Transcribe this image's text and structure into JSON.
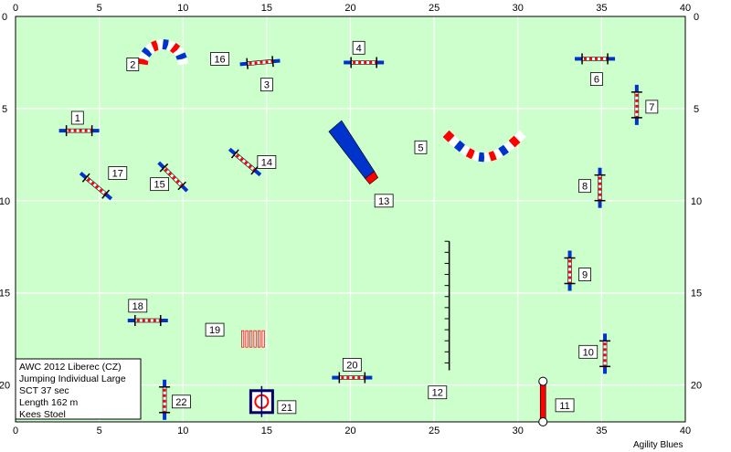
{
  "axis": {
    "x_min": 0,
    "x_max": 40,
    "y_min": 0,
    "y_max": 22,
    "x_ticks": [
      "0",
      "5",
      "10",
      "15",
      "20",
      "25",
      "30",
      "35",
      "40"
    ],
    "y_ticks": [
      "0",
      "5",
      "10",
      "15",
      "20"
    ],
    "x_tick_values": [
      0,
      5,
      10,
      15,
      20,
      25,
      30,
      35,
      40
    ],
    "y_tick_values": [
      0,
      5,
      10,
      15,
      20
    ],
    "grid": true,
    "field_color": "#ccffcc",
    "grid_color": "#ffffff"
  },
  "info": {
    "event": "AWC 2012 Liberec (CZ)",
    "class": "Jumping Individual Large",
    "sct": "SCT 37 sec",
    "length": "Length 162 m",
    "judge": "Kees Stoel"
  },
  "credit": "Agility Blues",
  "colors": {
    "blue": "#0033cc",
    "red": "#ff0000",
    "white": "#ffffff",
    "navy": "#000066"
  },
  "obstacles": [
    {
      "num": "1",
      "type": "jump",
      "x": 3.8,
      "y": 6.2,
      "angle": 0,
      "label_x": 3.7,
      "label_y": 5.5
    },
    {
      "num": "2",
      "type": "tunnel_u",
      "x": 8.8,
      "y": 2.6,
      "label_x": 7.0,
      "label_y": 2.6
    },
    {
      "num": "3",
      "type": "jump",
      "x": 14.6,
      "y": 2.5,
      "angle": -5,
      "label_x": 15.0,
      "label_y": 3.7
    },
    {
      "num": "4",
      "type": "jump",
      "x": 20.8,
      "y": 2.5,
      "angle": 0,
      "label_x": 20.5,
      "label_y": 1.7
    },
    {
      "num": "5",
      "type": "tunnel_s",
      "x": 28.0,
      "y": 7.6,
      "label_x": 24.2,
      "label_y": 7.1
    },
    {
      "num": "6",
      "type": "jump",
      "x": 34.6,
      "y": 2.3,
      "angle": 0,
      "label_x": 34.7,
      "label_y": 3.4
    },
    {
      "num": "7",
      "type": "jump",
      "x": 37.1,
      "y": 4.8,
      "angle": 90,
      "label_x": 38.0,
      "label_y": 4.9
    },
    {
      "num": "8",
      "type": "jump",
      "x": 34.9,
      "y": 9.3,
      "angle": 90,
      "label_x": 34.0,
      "label_y": 9.2
    },
    {
      "num": "9",
      "type": "jump",
      "x": 33.1,
      "y": 13.8,
      "angle": 90,
      "label_x": 34.0,
      "label_y": 14.0
    },
    {
      "num": "10",
      "type": "jump",
      "x": 35.2,
      "y": 18.3,
      "angle": 90,
      "label_x": 34.2,
      "label_y": 18.2
    },
    {
      "num": "11",
      "type": "tire",
      "x": 31.5,
      "y": 20.9,
      "label_x": 32.8,
      "label_y": 21.1
    },
    {
      "num": "12",
      "type": "wall",
      "x": 25.9,
      "y": 16.0,
      "label_x": 25.2,
      "label_y": 20.4
    },
    {
      "num": "13",
      "type": "wedge",
      "x": 20.0,
      "y": 8.1,
      "label_x": 22.0,
      "label_y": 10.0
    },
    {
      "num": "14",
      "type": "jump",
      "x": 13.7,
      "y": 7.9,
      "angle": 40,
      "label_x": 15.0,
      "label_y": 7.9
    },
    {
      "num": "15",
      "type": "jump",
      "x": 9.4,
      "y": 8.7,
      "angle": 45,
      "label_x": 8.6,
      "label_y": 9.1
    },
    {
      "num": "16",
      "type": "label_only",
      "x": 0,
      "y": 0,
      "label_x": 12.2,
      "label_y": 2.3
    },
    {
      "num": "17",
      "type": "jump",
      "x": 4.8,
      "y": 9.2,
      "angle": 40,
      "label_x": 6.1,
      "label_y": 8.5
    },
    {
      "num": "18",
      "type": "jump",
      "x": 7.9,
      "y": 16.5,
      "angle": 0,
      "label_x": 7.3,
      "label_y": 15.7
    },
    {
      "num": "19",
      "type": "weaves",
      "x": 14.6,
      "y": 17.5,
      "label_x": 11.9,
      "label_y": 17.0
    },
    {
      "num": "20",
      "type": "jump",
      "x": 20.1,
      "y": 19.6,
      "angle": 0,
      "label_x": 20.1,
      "label_y": 18.9
    },
    {
      "num": "21",
      "type": "table",
      "x": 14.7,
      "y": 20.9,
      "label_x": 16.2,
      "label_y": 21.2
    },
    {
      "num": "22",
      "type": "jump",
      "x": 8.9,
      "y": 20.8,
      "angle": 90,
      "label_x": 9.9,
      "label_y": 20.9
    }
  ]
}
